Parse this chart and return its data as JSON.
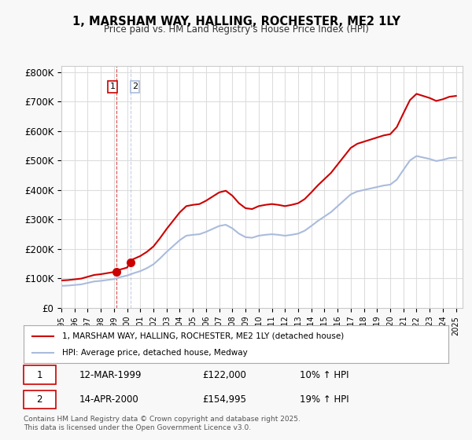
{
  "title": "1, MARSHAM WAY, HALLING, ROCHESTER, ME2 1LY",
  "subtitle": "Price paid vs. HM Land Registry's House Price Index (HPI)",
  "ylabel_ticks": [
    "£0",
    "£100K",
    "£200K",
    "£300K",
    "£400K",
    "£500K",
    "£600K",
    "£700K",
    "£800K"
  ],
  "ytick_values": [
    0,
    100000,
    200000,
    300000,
    400000,
    500000,
    600000,
    700000,
    800000
  ],
  "ylim": [
    0,
    820000
  ],
  "xlim_start": 1995.0,
  "xlim_end": 2025.5,
  "red_color": "#cc0000",
  "blue_color": "#aabbdd",
  "purchase1_year": 1999.19,
  "purchase1_price": 122000,
  "purchase1_label": "1",
  "purchase2_year": 2000.29,
  "purchase2_price": 154995,
  "purchase2_label": "2",
  "legend_red_label": "1, MARSHAM WAY, HALLING, ROCHESTER, ME2 1LY (detached house)",
  "legend_blue_label": "HPI: Average price, detached house, Medway",
  "table_rows": [
    {
      "num": "1",
      "date": "12-MAR-1999",
      "price": "£122,000",
      "hpi": "10% ↑ HPI"
    },
    {
      "num": "2",
      "date": "14-APR-2000",
      "price": "£154,995",
      "hpi": "19% ↑ HPI"
    }
  ],
  "footer": "Contains HM Land Registry data © Crown copyright and database right 2025.\nThis data is licensed under the Open Government Licence v3.0.",
  "background_color": "#f8f8f8",
  "plot_bg_color": "#ffffff",
  "grid_color": "#dddddd"
}
